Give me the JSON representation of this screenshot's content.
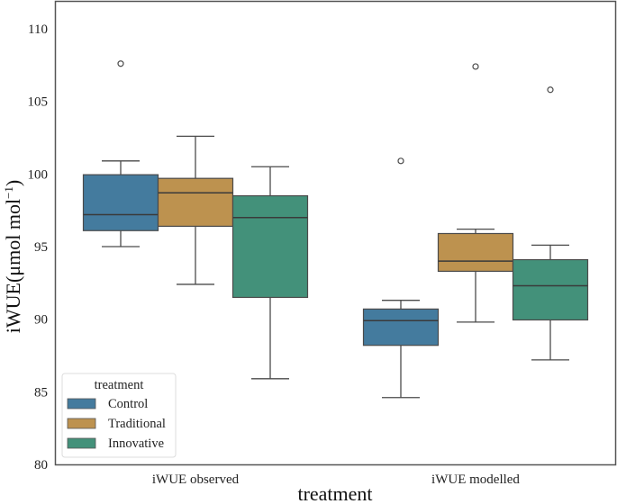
{
  "chart_data": {
    "type": "boxplot",
    "title": "",
    "xlabel": "treatment",
    "ylabel_main": "iWUE(μmol mol",
    "ylabel_sup": "−1",
    "ylabel_close": ")",
    "ylim": [
      80,
      111
    ],
    "yticks": [
      80,
      85,
      90,
      95,
      100,
      105,
      110
    ],
    "grid": false,
    "categories": [
      "iWUE observed",
      "iWUE modelled"
    ],
    "legend": {
      "title": "treatment",
      "placement": "lower-left",
      "entries": [
        "Control",
        "Traditional",
        "Innovative"
      ]
    },
    "series": [
      {
        "name": "Control",
        "color": "#447b9e",
        "boxes": [
          {
            "whislo": 95.0,
            "q1": 96.1,
            "median": 97.2,
            "q3": 99.95,
            "whishi": 100.9,
            "fliers": [
              107.6
            ]
          },
          {
            "whislo": 84.6,
            "q1": 88.2,
            "median": 89.9,
            "q3": 90.7,
            "whishi": 91.3,
            "fliers": [
              100.9
            ]
          }
        ]
      },
      {
        "name": "Traditional",
        "color": "#bd924f",
        "boxes": [
          {
            "whislo": 92.4,
            "q1": 96.4,
            "median": 98.7,
            "q3": 99.7,
            "whishi": 102.6,
            "fliers": []
          },
          {
            "whislo": 89.8,
            "q1": 93.3,
            "median": 94.0,
            "q3": 95.9,
            "whishi": 96.2,
            "fliers": [
              107.4
            ]
          }
        ]
      },
      {
        "name": "Innovative",
        "color": "#43917a",
        "boxes": [
          {
            "whislo": 85.9,
            "q1": 91.5,
            "median": 97.0,
            "q3": 98.5,
            "whishi": 100.5,
            "fliers": []
          },
          {
            "whislo": 87.2,
            "q1": 89.95,
            "median": 92.3,
            "q3": 94.1,
            "whishi": 95.1,
            "fliers": [
              105.8
            ]
          }
        ]
      }
    ]
  }
}
